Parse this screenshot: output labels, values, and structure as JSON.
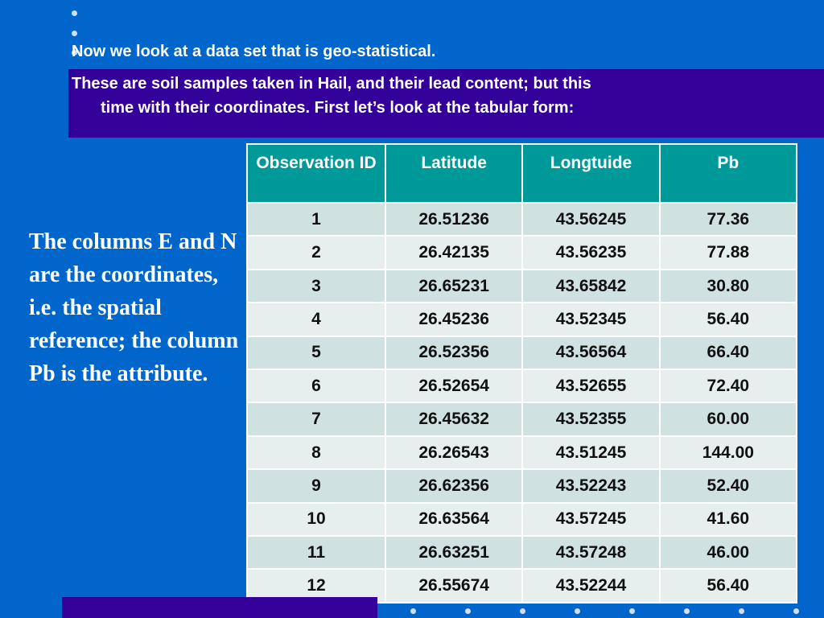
{
  "slide": {
    "intro_line": "Now we look at a data set that is geo-statistical.",
    "description_line1": "These are soil samples taken in Hail, and their lead content; but this",
    "description_line2": "time with their coordinates. First let’s look at the tabular form:",
    "side_note": "The columns E and N are the coordinates, i.e. the spatial reference; the column Pb is the attribute."
  },
  "table": {
    "headers": [
      "Observation ID",
      "Latitude",
      "Longtuide",
      "Pb"
    ],
    "rows": [
      [
        "1",
        "26.51236",
        "43.56245",
        "77.36"
      ],
      [
        "2",
        "26.42135",
        "43.56235",
        "77.88"
      ],
      [
        "3",
        "26.65231",
        "43.65842",
        "30.80"
      ],
      [
        "4",
        "26.45236",
        "43.52345",
        "56.40"
      ],
      [
        "5",
        "26.52356",
        "43.56564",
        "66.40"
      ],
      [
        "6",
        "26.52654",
        "43.52655",
        "72.40"
      ],
      [
        "7",
        "26.45632",
        "43.52355",
        "60.00"
      ],
      [
        "8",
        "26.26543",
        "43.51245",
        "144.00"
      ],
      [
        "9",
        "26.62356",
        "43.52243",
        "52.40"
      ],
      [
        "10",
        "26.63564",
        "43.57245",
        "41.60"
      ],
      [
        "11",
        "26.63251",
        "43.57248",
        "46.00"
      ],
      [
        "12",
        "26.55674",
        "43.52244",
        "56.40"
      ]
    ]
  },
  "colors": {
    "background": "#0066cc",
    "accent_bar": "#330099",
    "header_fill": "#009999",
    "row_odd": "#cfe1e1",
    "row_even": "#e7eeee"
  }
}
